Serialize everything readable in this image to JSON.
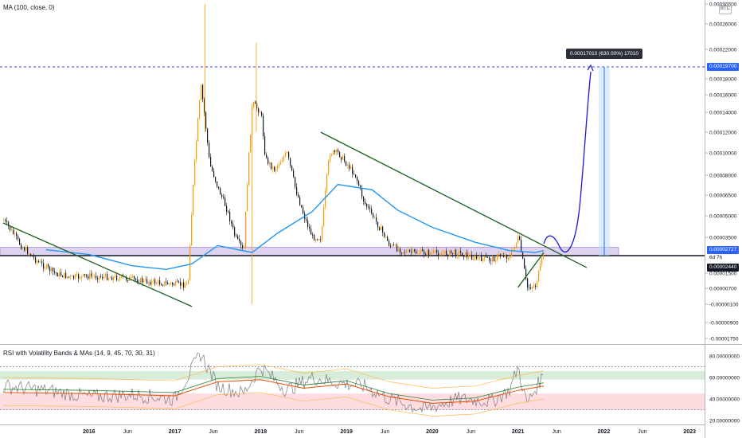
{
  "indicators": {
    "main": "MA (100, close, 0)",
    "lower": "RSI with Volatility Bands & MAs (14, 9, 45, 70, 30, 31)"
  },
  "ticker_badge": "BTC",
  "tooltip": "0.00017010 (630.00%) 17010",
  "price_tags": {
    "target": "0.00019700",
    "current": "0.00002727",
    "countdown": "6d 7h",
    "support": "0.00002440"
  },
  "colors": {
    "up": "#ff9800",
    "down": "#131722",
    "ma": "#2196f3",
    "trend": "#1b5e20",
    "projection": "#1a1ad6",
    "zone": "#b39ddb",
    "target_line": "#3f3fd1"
  },
  "chart_data": [
    {
      "type": "candlestick",
      "scale": "log",
      "y_tick_labels": [
        "0.00030000",
        "0.00026000",
        "0.00022000",
        "0.00018000",
        "0.00016000",
        "0.00014000",
        "0.00012000",
        "0.00010000",
        "0.00008000",
        "0.00006500",
        "0.00005000",
        "0.00003500",
        "0.00002500",
        "0.00001500",
        "0.00000700",
        "-0.00000100",
        "-0.00000900",
        "-0.00001750"
      ],
      "x_tick_labels": [
        "2016",
        "Jun",
        "2017",
        "Jun",
        "2018",
        "Jun",
        "2019",
        "Jun",
        "2020",
        "Jun",
        "2021",
        "Jun",
        "2022",
        "Jun",
        "2023"
      ],
      "x_tick_labels_bold": [
        "2016",
        "2017",
        "2018",
        "2019",
        "2020",
        "2021",
        "2022",
        "2023"
      ],
      "series": [
        {
          "name": "MA (100, close, 0)",
          "t": [
            2015.5,
            2016.0,
            2016.5,
            2016.9,
            2017.2,
            2017.5,
            2017.9,
            2018.2,
            2018.6,
            2018.9,
            2019.3,
            2019.6,
            2020.0,
            2020.5,
            2020.9,
            2021.2,
            2021.3
          ],
          "values": [
            2.75e-05,
            2.5e-05,
            1.9e-05,
            1.7e-05,
            2e-05,
            3e-05,
            2.6e-05,
            3.8e-05,
            5.3e-05,
            7.3e-05,
            6.9e-05,
            5.4e-05,
            4.2e-05,
            3.2e-05,
            2.7e-05,
            2.6e-05,
            2.7e-05
          ]
        }
      ],
      "price_path": {
        "t": [
          2015.0,
          2015.2,
          2015.4,
          2015.6,
          2015.8,
          2016.0,
          2016.2,
          2016.4,
          2016.6,
          2016.8,
          2017.0,
          2017.15,
          2017.3,
          2017.4,
          2017.5,
          2017.6,
          2017.7,
          2017.8,
          2017.9,
          2018.0,
          2018.05,
          2018.15,
          2018.3,
          2018.4,
          2018.5,
          2018.6,
          2018.7,
          2018.8,
          2018.9,
          2019.0,
          2019.1,
          2019.2,
          2019.35,
          2019.5,
          2019.7,
          2019.9,
          2020.1,
          2020.3,
          2020.5,
          2020.7,
          2020.8,
          2020.9,
          2021.0,
          2021.1,
          2021.2,
          2021.3
        ],
        "close": [
          4.7e-05,
          3e-05,
          2.1e-05,
          1.5e-05,
          1.25e-05,
          1.35e-05,
          1.3e-05,
          1.25e-05,
          1.1e-05,
          1e-05,
          9e-06,
          9e-06,
          0.00017,
          9e-05,
          7e-05,
          5.5e-05,
          3.5e-05,
          2.6e-05,
          0.00015,
          0.00014,
          9.5e-05,
          8.5e-05,
          0.0001,
          7e-05,
          5e-05,
          3.5e-05,
          3.5e-05,
          0.0001,
          0.0001,
          9e-05,
          8e-05,
          6e-05,
          4.5e-05,
          3e-05,
          2.6e-05,
          2.6e-05,
          2.55e-05,
          2.6e-05,
          2.3e-05,
          2.25e-05,
          2.5e-05,
          2.35e-05,
          3.5e-05,
          7.5e-06,
          8.5e-06,
          2.7e-05
        ]
      },
      "trendlines": [
        {
          "from": [
            2015.0,
            4.5e-05
          ],
          "to": [
            2017.2,
            -2e-06
          ]
        },
        {
          "from": [
            2018.7,
            0.00012
          ],
          "to": [
            2021.8,
            1.8e-05
          ]
        },
        {
          "from": [
            2021.0,
            7.5e-06
          ],
          "to": [
            2021.3,
            2.6e-05
          ]
        }
      ],
      "horizontal_levels": [
        {
          "label": "0.00019700",
          "value": 0.000197,
          "style": "dashed"
        },
        {
          "label": "0.00002440",
          "value": 2.44e-05,
          "style": "solid"
        }
      ],
      "zone": [
        2.44e-05,
        2.9e-05
      ],
      "projection": {
        "target": 0.000197,
        "change": "630.00%"
      }
    },
    {
      "type": "line",
      "title": "RSI with Volatility Bands & MAs (14, 9, 45, 70, 30, 31)",
      "y_tick_labels": [
        "80.00000000",
        "60.00000000",
        "40.00000000",
        "20.00000000"
      ],
      "bands": [
        {
          "range": [
            58,
            66
          ],
          "color": "#c8e6c9"
        },
        {
          "range": [
            30,
            45
          ],
          "color": "#ffcdd2"
        }
      ],
      "levels": [
        70,
        30
      ],
      "series": [
        {
          "name": "RSI",
          "t": [
            2015.0,
            2015.5,
            2016.0,
            2016.5,
            2017.0,
            2017.3,
            2017.5,
            2017.8,
            2018.0,
            2018.3,
            2018.6,
            2018.9,
            2019.2,
            2019.5,
            2019.9,
            2020.3,
            2020.7,
            2020.9,
            2021.0,
            2021.1,
            2021.3
          ],
          "values": [
            52,
            48,
            42,
            44,
            40,
            82,
            52,
            45,
            70,
            48,
            60,
            55,
            52,
            40,
            30,
            40,
            38,
            48,
            70,
            35,
            63
          ]
        },
        {
          "name": "RSI MA",
          "t": [
            2015.0,
            2016.0,
            2017.0,
            2017.5,
            2018.0,
            2018.5,
            2019.0,
            2019.5,
            2020.0,
            2020.5,
            2021.0,
            2021.3
          ],
          "values": [
            46,
            45,
            43,
            56,
            58,
            50,
            54,
            42,
            36,
            38,
            48,
            52
          ]
        }
      ]
    }
  ]
}
